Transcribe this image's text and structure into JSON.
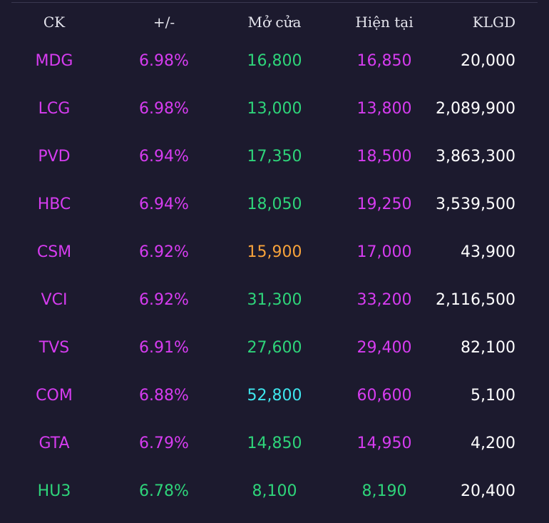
{
  "header": {
    "ck": "CK",
    "change": "+/-",
    "open": "Mở cửa",
    "current": "Hiện tại",
    "volume": "KLGD"
  },
  "colors": {
    "background": "#1c1a2e",
    "ceiling_purple": "#d63cf0",
    "up_green": "#2ed47a",
    "ref_yellow": "#f7a23b",
    "floor_cyan": "#3fe6ee",
    "volume_white": "#ffffff"
  },
  "rows": [
    {
      "ck": "MDG",
      "change": "6.98%",
      "open": "16,800",
      "current": "16,850",
      "volume": "20,000",
      "ck_color": "#d63cf0",
      "change_color": "#d63cf0",
      "open_color": "#2ed47a",
      "current_color": "#d63cf0"
    },
    {
      "ck": "LCG",
      "change": "6.98%",
      "open": "13,000",
      "current": "13,800",
      "volume": "2,089,900",
      "ck_color": "#d63cf0",
      "change_color": "#d63cf0",
      "open_color": "#2ed47a",
      "current_color": "#d63cf0"
    },
    {
      "ck": "PVD",
      "change": "6.94%",
      "open": "17,350",
      "current": "18,500",
      "volume": "3,863,300",
      "ck_color": "#d63cf0",
      "change_color": "#d63cf0",
      "open_color": "#2ed47a",
      "current_color": "#d63cf0"
    },
    {
      "ck": "HBC",
      "change": "6.94%",
      "open": "18,050",
      "current": "19,250",
      "volume": "3,539,500",
      "ck_color": "#d63cf0",
      "change_color": "#d63cf0",
      "open_color": "#2ed47a",
      "current_color": "#d63cf0"
    },
    {
      "ck": "CSM",
      "change": "6.92%",
      "open": "15,900",
      "current": "17,000",
      "volume": "43,900",
      "ck_color": "#d63cf0",
      "change_color": "#d63cf0",
      "open_color": "#f7a23b",
      "current_color": "#d63cf0"
    },
    {
      "ck": "VCI",
      "change": "6.92%",
      "open": "31,300",
      "current": "33,200",
      "volume": "2,116,500",
      "ck_color": "#d63cf0",
      "change_color": "#d63cf0",
      "open_color": "#2ed47a",
      "current_color": "#d63cf0"
    },
    {
      "ck": "TVS",
      "change": "6.91%",
      "open": "27,600",
      "current": "29,400",
      "volume": "82,100",
      "ck_color": "#d63cf0",
      "change_color": "#d63cf0",
      "open_color": "#2ed47a",
      "current_color": "#d63cf0"
    },
    {
      "ck": "COM",
      "change": "6.88%",
      "open": "52,800",
      "current": "60,600",
      "volume": "5,100",
      "ck_color": "#d63cf0",
      "change_color": "#d63cf0",
      "open_color": "#3fe6ee",
      "current_color": "#d63cf0"
    },
    {
      "ck": "GTA",
      "change": "6.79%",
      "open": "14,850",
      "current": "14,950",
      "volume": "4,200",
      "ck_color": "#d63cf0",
      "change_color": "#d63cf0",
      "open_color": "#2ed47a",
      "current_color": "#d63cf0"
    },
    {
      "ck": "HU3",
      "change": "6.78%",
      "open": "8,100",
      "current": "8,190",
      "volume": "20,400",
      "ck_color": "#2ed47a",
      "change_color": "#2ed47a",
      "open_color": "#2ed47a",
      "current_color": "#2ed47a"
    }
  ]
}
